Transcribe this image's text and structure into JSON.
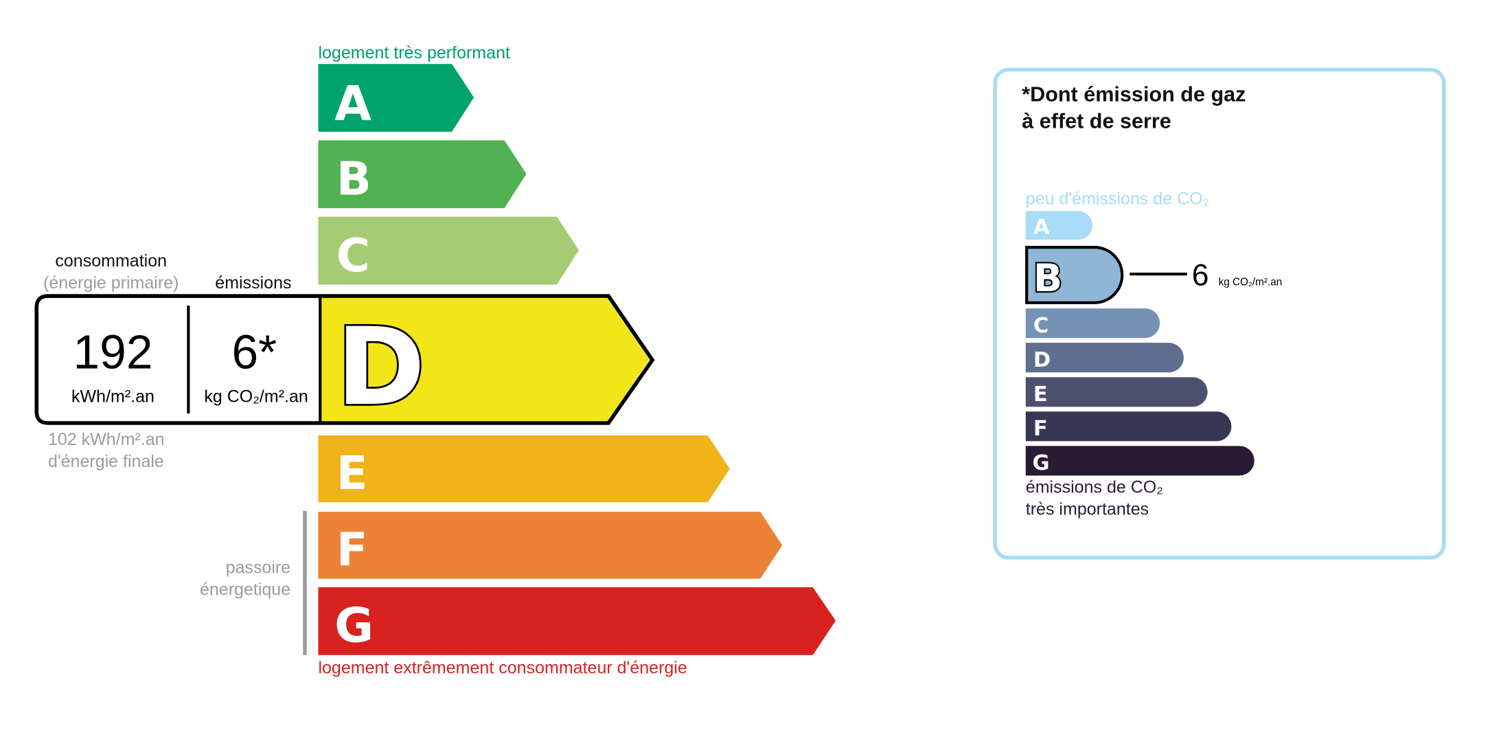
{
  "energy": {
    "top_label": "logement très performant",
    "bottom_label": "logement extrêmement consommateur d'énergie",
    "top_color": "#00a06b",
    "bottom_color": "#d7221f",
    "classes": [
      {
        "letter": "A",
        "color": "#00a36c"
      },
      {
        "letter": "B",
        "color": "#52b153"
      },
      {
        "letter": "C",
        "color": "#a5cc74"
      },
      {
        "letter": "D",
        "color": "#f2e61b"
      },
      {
        "letter": "E",
        "color": "#f0b418"
      },
      {
        "letter": "F",
        "color": "#eb8235"
      },
      {
        "letter": "G",
        "color": "#d7221f"
      }
    ],
    "current_class": "D",
    "consumption_label": "consommation",
    "consumption_sublabel": "(énergie primaire)",
    "emissions_label": "émissions",
    "consumption_value": "192",
    "consumption_unit": "kWh/m².an",
    "emissions_value": "6*",
    "emissions_unit": "kg CO₂/m².an",
    "final_energy_value": "102 kWh/m².an",
    "final_energy_label": "d'énergie finale",
    "passoire_line1": "passoire",
    "passoire_line2": "énergetique"
  },
  "ges": {
    "title_line1": "*Dont émission de gaz",
    "title_line2": "à effet de serre",
    "top_label": "peu d'émissions de CO₂",
    "bottom_line1": "émissions de CO₂",
    "bottom_line2": "très importantes",
    "border_color": "#a8dcf5",
    "classes": [
      {
        "letter": "A",
        "color": "#a8dcf7"
      },
      {
        "letter": "B",
        "color": "#8fb6d6"
      },
      {
        "letter": "C",
        "color": "#7591b3"
      },
      {
        "letter": "D",
        "color": "#5f6e8f"
      },
      {
        "letter": "E",
        "color": "#4c506f"
      },
      {
        "letter": "F",
        "color": "#383753"
      },
      {
        "letter": "G",
        "color": "#291b33"
      }
    ],
    "current_class": "B",
    "value": "6",
    "unit": "kg CO₂/m².an"
  }
}
